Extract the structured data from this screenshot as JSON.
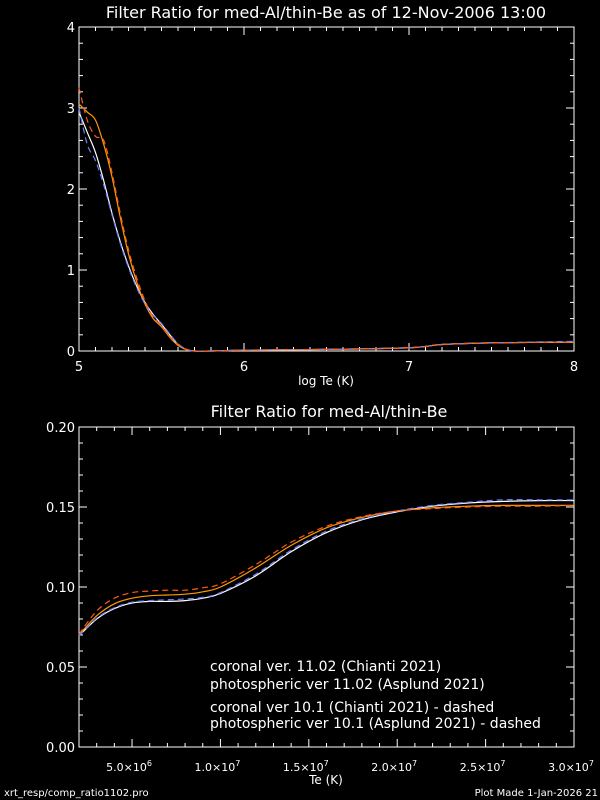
{
  "footer": {
    "left": "xrt_resp/comp_ratio1102.pro",
    "right": "Plot Made  1-Jan-2026 21"
  },
  "colors": {
    "background": "#000000",
    "coronal_11": "#ffffff",
    "photospheric_11": "#ff9900",
    "coronal_10": "#6a7dff",
    "photospheric_10": "#ff5a1a"
  },
  "chart_data": [
    {
      "type": "line",
      "title": "Filter Ratio for med-Al/thin-Be as of 12-Nov-2006 13:00",
      "xlabel": "log Te (K)",
      "ylabel": "",
      "xlim": [
        5,
        8
      ],
      "ylim": [
        0,
        4
      ],
      "xticks": [
        5,
        6,
        7,
        8
      ],
      "xtick_labels": [
        "5",
        "6",
        "7",
        "8"
      ],
      "yticks": [
        0,
        1,
        2,
        3,
        4
      ],
      "ytick_labels": [
        "0",
        "1",
        "2",
        "3",
        "4"
      ],
      "series": [
        {
          "color": "coronal_11",
          "dash": false,
          "x": [
            5.0,
            5.05,
            5.1,
            5.15,
            5.2,
            5.25,
            5.3,
            5.35,
            5.4,
            5.45,
            5.5,
            5.55,
            5.6,
            5.65,
            5.7,
            5.8,
            6.0,
            6.5,
            7.0,
            7.2,
            7.5,
            8.0
          ],
          "y": [
            2.95,
            2.7,
            2.45,
            2.1,
            1.7,
            1.35,
            1.05,
            0.8,
            0.6,
            0.45,
            0.33,
            0.2,
            0.08,
            0.02,
            0.0,
            0.0,
            0.01,
            0.02,
            0.04,
            0.08,
            0.1,
            0.11
          ]
        },
        {
          "color": "photospheric_11",
          "dash": false,
          "x": [
            5.0,
            5.05,
            5.1,
            5.15,
            5.2,
            5.25,
            5.3,
            5.35,
            5.4,
            5.45,
            5.5,
            5.55,
            5.6,
            5.65,
            5.7,
            5.8,
            6.0,
            6.5,
            7.0,
            7.2,
            7.5,
            8.0
          ],
          "y": [
            3.05,
            2.95,
            2.85,
            2.55,
            2.15,
            1.65,
            1.2,
            0.85,
            0.58,
            0.4,
            0.3,
            0.17,
            0.07,
            0.02,
            0.0,
            0.0,
            0.01,
            0.02,
            0.04,
            0.08,
            0.1,
            0.11
          ]
        },
        {
          "color": "coronal_10",
          "dash": true,
          "x": [
            5.0,
            5.05,
            5.1,
            5.15,
            5.2,
            5.25,
            5.3,
            5.35,
            5.4,
            5.45,
            5.5,
            5.55,
            5.6,
            5.65,
            5.7,
            5.8,
            6.0,
            6.5,
            7.0,
            7.2,
            7.5,
            8.0
          ],
          "y": [
            3.0,
            2.55,
            2.35,
            2.05,
            1.68,
            1.33,
            1.03,
            0.78,
            0.58,
            0.44,
            0.34,
            0.21,
            0.09,
            0.02,
            0.0,
            0.0,
            0.01,
            0.02,
            0.04,
            0.08,
            0.1,
            0.12
          ]
        },
        {
          "color": "photospheric_10",
          "dash": true,
          "x": [
            5.0,
            5.05,
            5.1,
            5.15,
            5.2,
            5.25,
            5.3,
            5.35,
            5.4,
            5.45,
            5.5,
            5.55,
            5.6,
            5.65,
            5.7,
            5.8,
            6.0,
            6.5,
            7.0,
            7.2,
            7.5,
            8.0
          ],
          "y": [
            3.25,
            2.85,
            2.65,
            2.6,
            2.2,
            1.7,
            1.25,
            0.9,
            0.62,
            0.42,
            0.31,
            0.18,
            0.08,
            0.02,
            0.0,
            0.0,
            0.01,
            0.02,
            0.04,
            0.08,
            0.1,
            0.11
          ]
        }
      ]
    },
    {
      "type": "line",
      "title": "Filter Ratio for med-Al/thin-Be",
      "xlabel": "Te (K)",
      "ylabel": "",
      "xlim": [
        2000000,
        30000000
      ],
      "ylim": [
        0.0,
        0.2
      ],
      "xticks": [
        5000000,
        10000000,
        15000000,
        20000000,
        25000000,
        30000000
      ],
      "xtick_mantissas": [
        "5.0",
        "1.0",
        "1.5",
        "2.0",
        "2.5",
        "3.0"
      ],
      "xtick_exponents": [
        "6",
        "7",
        "7",
        "7",
        "7",
        "7"
      ],
      "xtick_prefix": "×10",
      "yticks": [
        0.0,
        0.05,
        0.1,
        0.15,
        0.2
      ],
      "ytick_labels": [
        "0.00",
        "0.05",
        "0.10",
        "0.15",
        "0.20"
      ],
      "series": [
        {
          "name": "coronal ver. 11.02 (Chianti 2021)",
          "color": "coronal_11",
          "dash": false,
          "x": [
            2000000,
            3000000,
            4000000,
            5000000,
            6000000,
            7000000,
            8000000,
            9000000,
            10000000,
            12000000,
            14000000,
            16000000,
            18000000,
            20000000,
            22000000,
            24000000,
            26000000,
            28000000,
            30000000
          ],
          "y": [
            0.0695,
            0.08,
            0.0865,
            0.09,
            0.091,
            0.091,
            0.0915,
            0.093,
            0.096,
            0.107,
            0.122,
            0.134,
            0.142,
            0.147,
            0.1505,
            0.1525,
            0.1535,
            0.154,
            0.154
          ]
        },
        {
          "name": "photospheric ver 11.02 (Asplund 2021)",
          "color": "photospheric_11",
          "dash": false,
          "x": [
            2000000,
            3000000,
            4000000,
            5000000,
            6000000,
            7000000,
            8000000,
            9000000,
            10000000,
            12000000,
            14000000,
            16000000,
            18000000,
            20000000,
            22000000,
            24000000,
            26000000,
            28000000,
            30000000
          ],
          "y": [
            0.07,
            0.082,
            0.0895,
            0.093,
            0.0945,
            0.095,
            0.0955,
            0.097,
            0.1,
            0.112,
            0.126,
            0.137,
            0.1435,
            0.1475,
            0.1495,
            0.1505,
            0.151,
            0.151,
            0.151
          ]
        },
        {
          "name": "coronal ver 10.1 (Chianti 2021) - dashed",
          "color": "coronal_10",
          "dash": true,
          "x": [
            2000000,
            3000000,
            4000000,
            5000000,
            6000000,
            7000000,
            8000000,
            9000000,
            10000000,
            12000000,
            14000000,
            16000000,
            18000000,
            20000000,
            22000000,
            24000000,
            26000000,
            28000000,
            30000000
          ],
          "y": [
            0.0695,
            0.0805,
            0.087,
            0.0905,
            0.0915,
            0.092,
            0.0925,
            0.0935,
            0.0965,
            0.108,
            0.123,
            0.135,
            0.1425,
            0.1475,
            0.151,
            0.153,
            0.1545,
            0.1545,
            0.1545
          ]
        },
        {
          "name": "photospheric ver 10.1 (Asplund 2021) - dashed",
          "color": "photospheric_10",
          "dash": true,
          "x": [
            2000000,
            3000000,
            4000000,
            5000000,
            6000000,
            7000000,
            8000000,
            9000000,
            10000000,
            12000000,
            14000000,
            16000000,
            18000000,
            20000000,
            22000000,
            24000000,
            26000000,
            28000000,
            30000000
          ],
          "y": [
            0.0705,
            0.085,
            0.093,
            0.0965,
            0.0975,
            0.098,
            0.098,
            0.0995,
            0.102,
            0.114,
            0.128,
            0.138,
            0.144,
            0.1475,
            0.149,
            0.15,
            0.1505,
            0.1505,
            0.151
          ]
        }
      ]
    }
  ]
}
